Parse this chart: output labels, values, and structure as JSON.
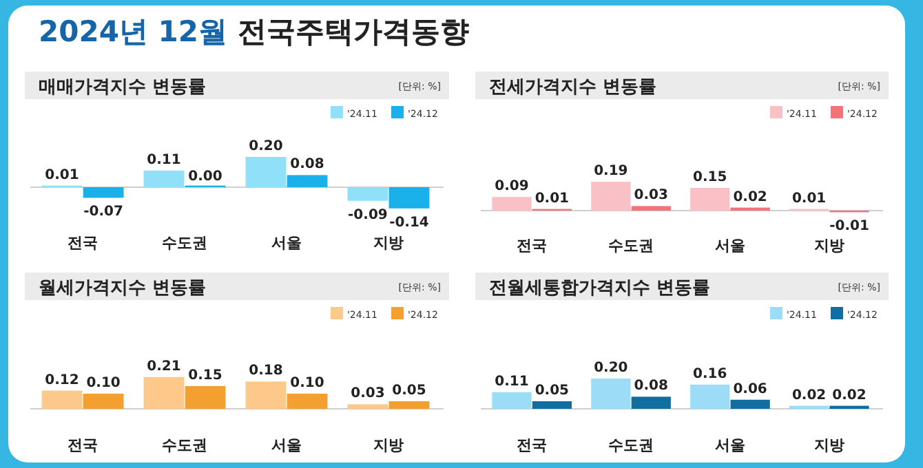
{
  "chart_data": [
    {
      "type": "bar",
      "title": "매매가격지수 변동률",
      "annotations": [
        "2024년 12월 전국주택가격동향",
        "[단위: %]"
      ],
      "categories": [
        "전국",
        "수도권",
        "서울",
        "지방"
      ],
      "legend": "top right",
      "series": [
        {
          "name": "'24.11",
          "color": "#8fe0f8",
          "values": [
            0.01,
            0.11,
            0.2,
            -0.09
          ],
          "value_labels": [
            "0.01",
            "0.11",
            "0.20",
            "-0.09"
          ]
        },
        {
          "name": "'24.12",
          "color": "#1ab0ea",
          "values": [
            -0.07,
            0.0,
            0.08,
            -0.14
          ],
          "value_labels": [
            "-0.07",
            "0.00",
            "0.08",
            "-0.14"
          ]
        }
      ]
    },
    {
      "type": "bar",
      "title": "전세가격지수 변동률",
      "annotations": [
        "[단위: %]"
      ],
      "categories": [
        "전국",
        "수도권",
        "서울",
        "지방"
      ],
      "legend": "top right",
      "series": [
        {
          "name": "'24.11",
          "color": "#f9c0c6",
          "values": [
            0.09,
            0.19,
            0.15,
            0.01
          ],
          "value_labels": [
            "0.09",
            "0.19",
            "0.15",
            "0.01"
          ]
        },
        {
          "name": "'24.12",
          "color": "#f27378",
          "values": [
            0.01,
            0.03,
            0.02,
            -0.01
          ],
          "value_labels": [
            "0.01",
            "0.03",
            "0.02",
            "-0.01"
          ]
        }
      ]
    },
    {
      "type": "bar",
      "title": "월세가격지수 변동률",
      "annotations": [
        "[단위: %]"
      ],
      "categories": [
        "전국",
        "수도권",
        "서울",
        "지방"
      ],
      "legend": "top right",
      "series": [
        {
          "name": "'24.11",
          "color": "#fcc98a",
          "values": [
            0.12,
            0.21,
            0.18,
            0.03
          ],
          "value_labels": [
            "0.12",
            "0.21",
            "0.18",
            "0.03"
          ]
        },
        {
          "name": "'24.12",
          "color": "#f4a030",
          "values": [
            0.1,
            0.15,
            0.1,
            0.05
          ],
          "value_labels": [
            "0.10",
            "0.15",
            "0.10",
            "0.05"
          ]
        }
      ]
    },
    {
      "type": "bar",
      "title": "전월세통합가격지수 변동률",
      "annotations": [
        "[단위: %]"
      ],
      "categories": [
        "전국",
        "수도권",
        "서울",
        "지방"
      ],
      "legend": "top right",
      "series": [
        {
          "name": "'24.11",
          "color": "#9ddcf6",
          "values": [
            0.11,
            0.2,
            0.16,
            0.02
          ],
          "value_labels": [
            "0.11",
            "0.20",
            "0.16",
            "0.02"
          ]
        },
        {
          "name": "'24.12",
          "color": "#106fa0",
          "values": [
            0.05,
            0.08,
            0.06,
            0.02
          ],
          "value_labels": [
            "0.05",
            "0.08",
            "0.06",
            "0.02"
          ]
        }
      ]
    }
  ]
}
